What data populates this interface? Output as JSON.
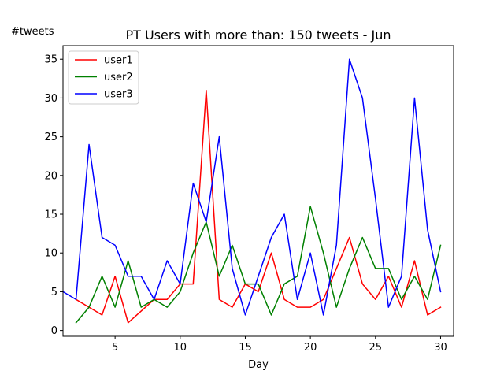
{
  "chart_data": {
    "type": "line",
    "title": "PT Users with more than: 150 tweets - Jun",
    "xlabel": "Day",
    "ylabel": "#tweets",
    "xlim": [
      1,
      31
    ],
    "ylim": [
      -0.75,
      36.75
    ],
    "xticks": [
      5,
      10,
      15,
      20,
      25,
      30
    ],
    "yticks": [
      0,
      5,
      10,
      15,
      20,
      25,
      30,
      35
    ],
    "grid": false,
    "legend_position": "top-left",
    "series": [
      {
        "name": "user1",
        "color": "#ff0000",
        "x": [
          2,
          3,
          4,
          5,
          6,
          7,
          8,
          9,
          10,
          11,
          12,
          13,
          14,
          15,
          16,
          17,
          18,
          19,
          20,
          21,
          22,
          23,
          24,
          25,
          26,
          27,
          28,
          29,
          30
        ],
        "y": [
          4,
          3,
          2,
          7,
          1,
          2.5,
          4,
          4,
          6,
          6,
          31,
          4,
          3,
          6,
          5,
          10,
          4,
          3,
          3,
          4,
          8,
          12,
          6,
          4,
          7,
          3,
          9,
          2,
          3
        ]
      },
      {
        "name": "user2",
        "color": "#008000",
        "x": [
          2,
          3,
          4,
          5,
          6,
          7,
          8,
          9,
          10,
          11,
          12,
          13,
          14,
          15,
          16,
          17,
          18,
          19,
          20,
          21,
          22,
          23,
          24,
          25,
          26,
          27,
          28,
          29,
          30
        ],
        "y": [
          1,
          3,
          7,
          3,
          9,
          3,
          4,
          3,
          5,
          10,
          14,
          7,
          11,
          6,
          6,
          2,
          6,
          7,
          16,
          10,
          3,
          8,
          12,
          8,
          8,
          4,
          7,
          4,
          11
        ]
      },
      {
        "name": "user3",
        "color": "#0000ff",
        "x": [
          1,
          2,
          3,
          4,
          5,
          6,
          7,
          8,
          9,
          10,
          11,
          12,
          13,
          14,
          15,
          16,
          17,
          18,
          19,
          20,
          21,
          22,
          23,
          24,
          25,
          26,
          27,
          28,
          29,
          30
        ],
        "y": [
          5,
          4,
          24,
          12,
          11,
          7,
          7,
          4,
          9,
          6,
          19,
          14,
          25,
          8,
          2,
          7,
          12,
          15,
          4,
          10,
          2,
          11,
          35,
          30,
          17,
          3,
          7,
          30,
          13,
          5
        ]
      }
    ]
  }
}
